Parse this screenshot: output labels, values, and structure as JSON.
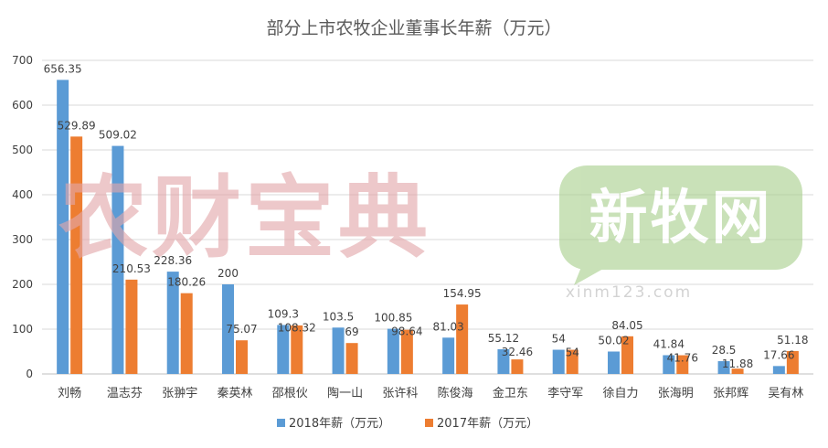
{
  "chart_data": {
    "type": "bar",
    "title": "部分上市农牧企业董事长年薪（万元）",
    "xlabel": "",
    "ylabel": "",
    "ylim": [
      0,
      700
    ],
    "yticks": [
      "0",
      "100",
      "200",
      "300",
      "400",
      "500",
      "600",
      "700"
    ],
    "grid": true,
    "legend_position": "bottom",
    "categories": [
      "刘畅",
      "温志芬",
      "张翀宇",
      "秦英林",
      "邵根伙",
      "陶一山",
      "张许科",
      "陈俊海",
      "金卫东",
      "李守军",
      "徐自力",
      "张海明",
      "张邦辉",
      "吴有林"
    ],
    "series": [
      {
        "name": "2018年薪（万元）",
        "color": "#5b9bd5",
        "values": [
          656.35,
          509.02,
          228.36,
          200,
          109.3,
          103.5,
          100.85,
          81.03,
          55.12,
          54,
          50.02,
          41.84,
          28.5,
          17.66
        ],
        "labels": [
          "656.35",
          "509.02",
          "228.36",
          "200",
          "109.3",
          "103.5",
          "100.85",
          "81.03",
          "55.12",
          "54",
          "50.02",
          "41.84",
          "28.5",
          "17.66"
        ]
      },
      {
        "name": "2017年薪（万元）",
        "color": "#ed7d31",
        "values": [
          529.89,
          210.53,
          180.26,
          75.07,
          108.32,
          69,
          98.64,
          154.95,
          32.46,
          54,
          84.05,
          41.76,
          11.88,
          51.18
        ],
        "labels": [
          "529.89",
          "210.53",
          "180.26",
          "75.07",
          "108.32",
          "69",
          "98.64",
          "154.95",
          "32.46",
          "54",
          "84.05",
          "41.76",
          "11.88",
          "51.18"
        ]
      }
    ]
  },
  "watermarks": {
    "left_logo": "农财宝典",
    "right_logo": "新牧网",
    "right_url": "xinm123.com",
    "left_color": "#e3a7aa",
    "right_color": "#a9d08e"
  }
}
